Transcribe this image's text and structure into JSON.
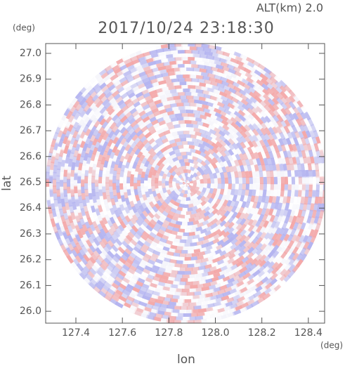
{
  "chart_data": {
    "type": "radar-ppi",
    "title": "2017/10/24 23:18:30",
    "subtitle": "ALT(km) 2.0",
    "x_label": "lon",
    "y_label": "lat",
    "x_unit": "(deg)",
    "y_unit": "(deg)",
    "xlim": [
      127.27,
      128.47
    ],
    "ylim": [
      25.954,
      27.038
    ],
    "xticks": [
      127.4,
      127.6,
      127.8,
      {
        "value": 128,
        "label": "128.0"
      },
      128.2,
      128.4
    ],
    "yticks": [
      {
        "value": 26,
        "label": "26.0"
      },
      26.1,
      26.2,
      26.3,
      26.4,
      26.5,
      26.6,
      26.7,
      26.8,
      26.9,
      {
        "value": 27,
        "label": "27.0"
      }
    ],
    "colors": [
      "#f4a8a8",
      "#b4b4f0",
      "#ffffff"
    ]
  }
}
